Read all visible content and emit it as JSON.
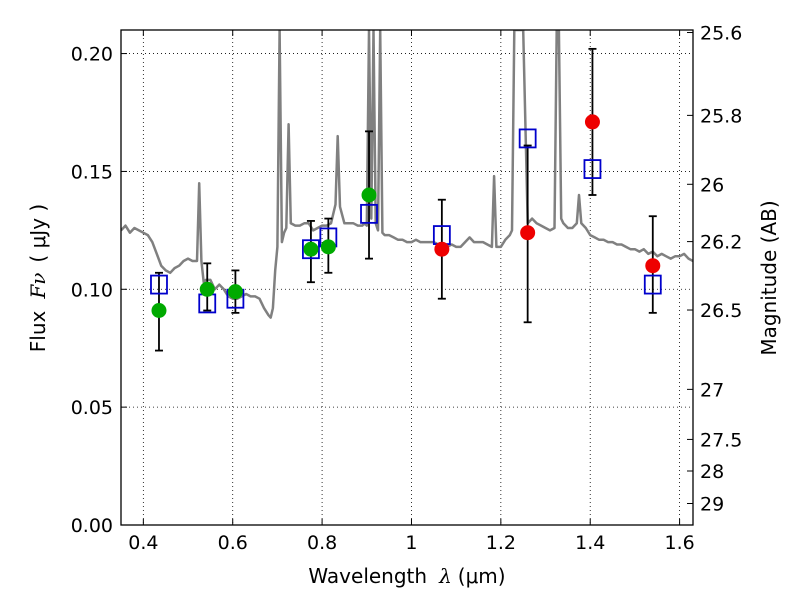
{
  "chart_data": {
    "type": "scatter",
    "title": "",
    "xlabel": {
      "prefix": "Wavelength",
      "symbol": "λ",
      "unit": "(μm)"
    },
    "ylabel": {
      "prefix": "Flux",
      "symbol": "Fν",
      "unit": "( μJy )"
    },
    "y2label": "Magnitude (AB)",
    "xlim": [
      0.35,
      1.63
    ],
    "ylim": [
      0.0,
      0.21
    ],
    "x_ticks": [
      {
        "value": 0.4,
        "label": "0.4"
      },
      {
        "value": 0.6,
        "label": "0.6"
      },
      {
        "value": 0.8,
        "label": "0.8"
      },
      {
        "value": 1.0,
        "label": "1"
      },
      {
        "value": 1.2,
        "label": "1.2"
      },
      {
        "value": 1.4,
        "label": "1.4"
      },
      {
        "value": 1.6,
        "label": "1.6"
      }
    ],
    "y_ticks": [
      {
        "value": 0.0,
        "label": "0.00"
      },
      {
        "value": 0.05,
        "label": "0.05"
      },
      {
        "value": 0.1,
        "label": "0.10"
      },
      {
        "value": 0.15,
        "label": "0.15"
      },
      {
        "value": 0.2,
        "label": "0.20"
      }
    ],
    "y2_ticks": [
      {
        "mag": 25.6,
        "label": "25.6"
      },
      {
        "mag": 25.8,
        "label": "25.8"
      },
      {
        "mag": 26.0,
        "label": "26"
      },
      {
        "mag": 26.2,
        "label": "26.2"
      },
      {
        "mag": 26.5,
        "label": "26.5"
      },
      {
        "mag": 27.0,
        "label": "27"
      },
      {
        "mag": 27.5,
        "label": "27.5"
      },
      {
        "mag": 28.0,
        "label": "28"
      },
      {
        "mag": 29.0,
        "label": "29"
      }
    ],
    "grid": true,
    "grid_style": "dotted",
    "colors": {
      "model_line": "#808080",
      "green_points": "#00aa00",
      "red_points": "#ee0000",
      "squares": "#0000cc",
      "errorbars": "#000000"
    },
    "model_spectrum": {
      "x": [
        0.35,
        0.36,
        0.37,
        0.38,
        0.39,
        0.4,
        0.41,
        0.42,
        0.43,
        0.44,
        0.45,
        0.46,
        0.47,
        0.48,
        0.49,
        0.5,
        0.51,
        0.52,
        0.525,
        0.53,
        0.535,
        0.54,
        0.55,
        0.56,
        0.57,
        0.58,
        0.59,
        0.6,
        0.61,
        0.62,
        0.63,
        0.64,
        0.65,
        0.66,
        0.67,
        0.68,
        0.685,
        0.69,
        0.695,
        0.7,
        0.705,
        0.71,
        0.715,
        0.72,
        0.725,
        0.73,
        0.74,
        0.75,
        0.76,
        0.77,
        0.78,
        0.79,
        0.8,
        0.81,
        0.82,
        0.83,
        0.835,
        0.84,
        0.85,
        0.86,
        0.87,
        0.88,
        0.89,
        0.895,
        0.9,
        0.905,
        0.91,
        0.915,
        0.92,
        0.925,
        0.93,
        0.935,
        0.94,
        0.95,
        0.96,
        0.97,
        0.98,
        0.99,
        1.0,
        1.01,
        1.02,
        1.03,
        1.04,
        1.05,
        1.06,
        1.07,
        1.08,
        1.09,
        1.1,
        1.11,
        1.12,
        1.13,
        1.14,
        1.15,
        1.16,
        1.17,
        1.18,
        1.185,
        1.19,
        1.2,
        1.21,
        1.22,
        1.225,
        1.23,
        1.24,
        1.25,
        1.26,
        1.27,
        1.28,
        1.29,
        1.3,
        1.31,
        1.32,
        1.325,
        1.33,
        1.335,
        1.34,
        1.35,
        1.36,
        1.37,
        1.375,
        1.38,
        1.39,
        1.4,
        1.41,
        1.42,
        1.43,
        1.44,
        1.45,
        1.46,
        1.47,
        1.48,
        1.49,
        1.5,
        1.51,
        1.52,
        1.53,
        1.54,
        1.55,
        1.56,
        1.57,
        1.58,
        1.59,
        1.6,
        1.61,
        1.62,
        1.63
      ],
      "y": [
        0.125,
        0.127,
        0.124,
        0.126,
        0.125,
        0.124,
        0.123,
        0.12,
        0.115,
        0.11,
        0.108,
        0.107,
        0.109,
        0.11,
        0.112,
        0.113,
        0.112,
        0.112,
        0.145,
        0.112,
        0.103,
        0.104,
        0.104,
        0.1,
        0.102,
        0.1,
        0.097,
        0.096,
        0.096,
        0.097,
        0.098,
        0.097,
        0.097,
        0.096,
        0.092,
        0.089,
        0.088,
        0.092,
        0.108,
        0.118,
        0.21,
        0.12,
        0.124,
        0.126,
        0.17,
        0.128,
        0.127,
        0.127,
        0.128,
        0.128,
        0.125,
        0.126,
        0.127,
        0.127,
        0.128,
        0.136,
        0.165,
        0.135,
        0.128,
        0.128,
        0.128,
        0.127,
        0.127,
        0.128,
        0.127,
        0.21,
        0.13,
        0.21,
        0.128,
        0.125,
        0.21,
        0.124,
        0.123,
        0.123,
        0.122,
        0.121,
        0.121,
        0.12,
        0.12,
        0.121,
        0.12,
        0.12,
        0.12,
        0.12,
        0.119,
        0.118,
        0.118,
        0.119,
        0.118,
        0.118,
        0.12,
        0.122,
        0.12,
        0.12,
        0.12,
        0.119,
        0.118,
        0.148,
        0.118,
        0.118,
        0.121,
        0.123,
        0.125,
        0.21,
        0.21,
        0.21,
        0.128,
        0.13,
        0.128,
        0.127,
        0.126,
        0.125,
        0.126,
        0.21,
        0.21,
        0.13,
        0.128,
        0.126,
        0.126,
        0.128,
        0.14,
        0.128,
        0.126,
        0.123,
        0.122,
        0.121,
        0.121,
        0.12,
        0.12,
        0.119,
        0.119,
        0.118,
        0.117,
        0.117,
        0.116,
        0.117,
        0.115,
        0.116,
        0.114,
        0.115,
        0.114,
        0.113,
        0.114,
        0.114,
        0.115,
        0.113,
        0.112
      ]
    },
    "series": [
      {
        "marker": "circle",
        "color": "green",
        "points": [
          {
            "x": 0.435,
            "y": 0.091,
            "yerr_low": 0.074,
            "yerr_high": 0.107
          },
          {
            "x": 0.543,
            "y": 0.1,
            "yerr_low": 0.091,
            "yerr_high": 0.111
          },
          {
            "x": 0.606,
            "y": 0.099,
            "yerr_low": 0.09,
            "yerr_high": 0.108
          },
          {
            "x": 0.775,
            "y": 0.117,
            "yerr_low": 0.103,
            "yerr_high": 0.129
          },
          {
            "x": 0.814,
            "y": 0.118,
            "yerr_low": 0.107,
            "yerr_high": 0.13
          },
          {
            "x": 0.905,
            "y": 0.14,
            "yerr_low": 0.113,
            "yerr_high": 0.167
          }
        ]
      },
      {
        "marker": "circle",
        "color": "red",
        "points": [
          {
            "x": 1.068,
            "y": 0.117,
            "yerr_low": 0.096,
            "yerr_high": 0.138
          },
          {
            "x": 1.26,
            "y": 0.124,
            "yerr_low": 0.086,
            "yerr_high": 0.161
          },
          {
            "x": 1.405,
            "y": 0.171,
            "yerr_low": 0.14,
            "yerr_high": 0.202
          },
          {
            "x": 1.54,
            "y": 0.11,
            "yerr_low": 0.09,
            "yerr_high": 0.131
          }
        ]
      },
      {
        "marker": "open-square",
        "color": "blue",
        "points": [
          {
            "x": 0.435,
            "y": 0.102
          },
          {
            "x": 0.543,
            "y": 0.094
          },
          {
            "x": 0.606,
            "y": 0.096
          },
          {
            "x": 0.775,
            "y": 0.117
          },
          {
            "x": 0.814,
            "y": 0.122
          },
          {
            "x": 0.905,
            "y": 0.132
          },
          {
            "x": 1.068,
            "y": 0.123
          },
          {
            "x": 1.26,
            "y": 0.164
          },
          {
            "x": 1.405,
            "y": 0.151
          },
          {
            "x": 1.54,
            "y": 0.102
          }
        ]
      }
    ]
  }
}
